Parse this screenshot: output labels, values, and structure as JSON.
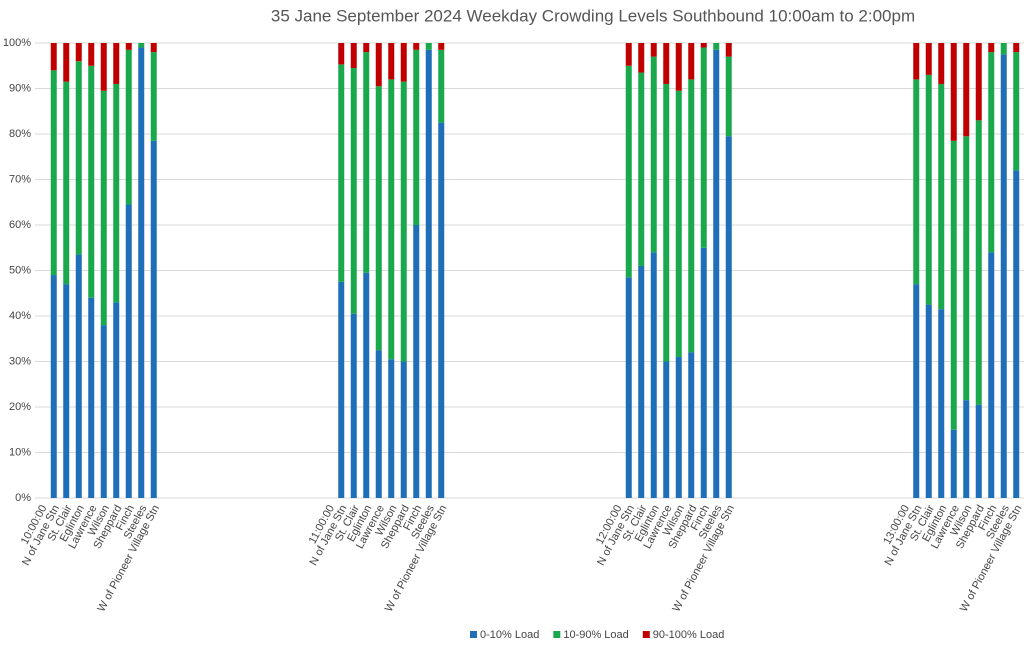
{
  "chart_data": {
    "type": "stacked_bar",
    "title": "35 Jane September 2024 Weekday Crowding Levels Southbound 10:00am to 2:00pm",
    "group_labels": [
      "10:00:00",
      "11:00:00",
      "12:00:00",
      "13:00:00"
    ],
    "categories": [
      "N of Jane Stn",
      "St. Clair",
      "Eglinton",
      "Lawrence",
      "Wilson",
      "Sheppard",
      "Finch",
      "Steeles",
      "W of Pioneer Village Stn",
      "N of Jane Stn",
      "St. Clair",
      "Eglinton",
      "Lawrence",
      "Wilson",
      "Sheppard",
      "Finch",
      "Steeles",
      "W of Pioneer Village Stn",
      "N of Jane Stn",
      "St. Clair",
      "Eglinton",
      "Lawrence",
      "Wilson",
      "Sheppard",
      "Finch",
      "Steeles",
      "W of Pioneer Village Stn",
      "N of Jane Stn",
      "St. Clair",
      "Eglinton",
      "Lawrence",
      "Wilson",
      "Sheppard",
      "Finch",
      "Steeles",
      "W of Pioneer Village Stn"
    ],
    "series": [
      {
        "name": "0-10% Load",
        "color": "#1f6fb8",
        "values": [
          49,
          47,
          53.5,
          44,
          38,
          43,
          64.5,
          99,
          78.5,
          47.5,
          40.5,
          49.5,
          32.5,
          30.5,
          30,
          60,
          98.5,
          82.5,
          48.5,
          51,
          54,
          30,
          31,
          32,
          55,
          98.5,
          79.5,
          47,
          42.5,
          41.5,
          15,
          21.5,
          20.5,
          54,
          97.5,
          72
        ]
      },
      {
        "name": "10-90% Load",
        "color": "#19a84c",
        "values": [
          45,
          44.5,
          42.5,
          51,
          51.5,
          48,
          34,
          1,
          19.5,
          47.8,
          54,
          48.5,
          58,
          61.5,
          61.5,
          38.5,
          1.5,
          16,
          46.5,
          42.5,
          43,
          61,
          58.5,
          60,
          44,
          1.5,
          17.5,
          45,
          50.5,
          49.5,
          63.5,
          58,
          62.5,
          44,
          2.5,
          26
        ]
      },
      {
        "name": "90-100% Load",
        "color": "#c00000",
        "values": [
          6,
          8.5,
          4,
          5,
          10.5,
          9,
          1.5,
          0,
          2,
          4.7,
          5.5,
          2,
          9.5,
          8,
          8.5,
          1.5,
          0,
          1.5,
          5,
          6.5,
          3,
          9,
          10.5,
          8,
          1,
          0,
          3,
          8,
          7,
          9,
          21.5,
          20.5,
          17,
          2,
          0,
          2
        ]
      }
    ],
    "ylim": [
      0,
      100
    ],
    "yticks": [
      {
        "value": 0,
        "label": "0%"
      },
      {
        "value": 10,
        "label": "10%"
      },
      {
        "value": 20,
        "label": "20%"
      },
      {
        "value": 30,
        "label": "30%"
      },
      {
        "value": 40,
        "label": "40%"
      },
      {
        "value": 50,
        "label": "50%"
      },
      {
        "value": 60,
        "label": "60%"
      },
      {
        "value": 70,
        "label": "70%"
      },
      {
        "value": 80,
        "label": "80%"
      },
      {
        "value": 90,
        "label": "90%"
      },
      {
        "value": 100,
        "label": "100%"
      }
    ],
    "grid": true,
    "legend": "bottom"
  }
}
